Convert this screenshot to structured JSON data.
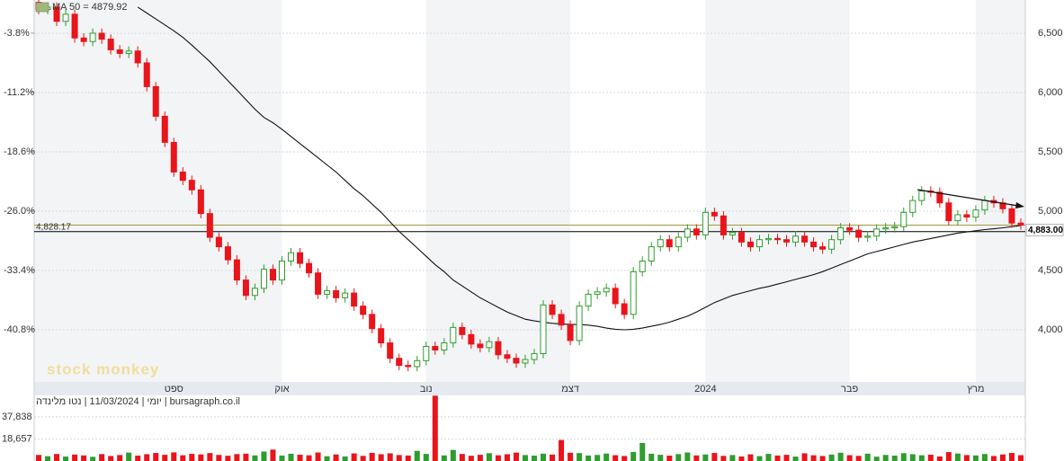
{
  "chart_data": {
    "type": "candlestick",
    "footer": "יומי | 11/03/2024 | נטו מלינדה | bursagraph.co.il",
    "watermark": "stock monkey",
    "up_color": "#2e9d2e",
    "down_color": "#e8151b",
    "grid": true,
    "categories": [
      null,
      null,
      null,
      null,
      null,
      null,
      null,
      null,
      null,
      null,
      null,
      null,
      null,
      null,
      null,
      "ספט",
      null,
      null,
      null,
      null,
      null,
      null,
      null,
      null,
      null,
      null,
      null,
      "אוק",
      null,
      null,
      null,
      null,
      null,
      null,
      null,
      null,
      null,
      null,
      null,
      null,
      null,
      null,
      null,
      "נוב",
      null,
      null,
      null,
      null,
      null,
      null,
      null,
      null,
      null,
      null,
      null,
      null,
      null,
      null,
      null,
      "דצמ",
      null,
      null,
      null,
      null,
      null,
      null,
      null,
      null,
      null,
      null,
      null,
      null,
      null,
      null,
      "2024",
      null,
      null,
      null,
      null,
      null,
      null,
      null,
      null,
      null,
      null,
      null,
      null,
      null,
      null,
      null,
      "פבר",
      null,
      null,
      null,
      null,
      null,
      null,
      null,
      null,
      null,
      null,
      null,
      null,
      null,
      "מרץ",
      null,
      null,
      null,
      null,
      null
    ],
    "open": [
      6760,
      6700,
      6720,
      6600,
      6660,
      6460,
      6430,
      6500,
      6450,
      6360,
      6330,
      6350,
      6250,
      6050,
      5800,
      5580,
      5330,
      5260,
      5180,
      4980,
      4780,
      4700,
      4590,
      4420,
      4290,
      4350,
      4510,
      4420,
      4580,
      4650,
      4560,
      4480,
      4300,
      4330,
      4270,
      4310,
      4200,
      4130,
      4010,
      3890,
      3760,
      3700,
      3690,
      3740,
      3860,
      3830,
      3890,
      4020,
      3960,
      3880,
      3850,
      3900,
      3790,
      3760,
      3720,
      3750,
      3800,
      4210,
      4130,
      4040,
      3910,
      4200,
      4300,
      4320,
      4350,
      4220,
      4130,
      4490,
      4580,
      4700,
      4760,
      4700,
      4780,
      4850,
      4800,
      4990,
      4960,
      4800,
      4820,
      4740,
      4700,
      4760,
      4770,
      4760,
      4740,
      4790,
      4740,
      4700,
      4680,
      4760,
      4860,
      4840,
      4780,
      4790,
      4850,
      4860,
      4870,
      4990,
      5090,
      5170,
      5160,
      5070,
      4920,
      4970,
      4950,
      5010,
      5090,
      5070,
      5020,
      4900
    ],
    "high": [
      6800,
      6760,
      6760,
      6700,
      6700,
      6500,
      6540,
      6540,
      6490,
      6400,
      6390,
      6390,
      6290,
      6090,
      5840,
      5620,
      5370,
      5300,
      5220,
      5020,
      4820,
      4740,
      4630,
      4460,
      4390,
      4550,
      4550,
      4620,
      4690,
      4690,
      4600,
      4520,
      4370,
      4370,
      4350,
      4350,
      4240,
      4170,
      4050,
      3930,
      3800,
      3740,
      3780,
      3900,
      3900,
      3930,
      4060,
      4060,
      4000,
      3920,
      3940,
      3940,
      3830,
      3800,
      3790,
      3840,
      4250,
      4250,
      4170,
      4080,
      4240,
      4340,
      4360,
      4390,
      4390,
      4260,
      4530,
      4620,
      4740,
      4800,
      4800,
      4820,
      4890,
      4890,
      5030,
      5030,
      5000,
      4860,
      4860,
      4780,
      4800,
      4810,
      4810,
      4800,
      4830,
      4830,
      4780,
      4740,
      4800,
      4900,
      4900,
      4880,
      4830,
      4890,
      4900,
      4910,
      5030,
      5130,
      5210,
      5210,
      5200,
      5110,
      5010,
      5010,
      5050,
      5130,
      5130,
      5110,
      5060,
      4940
    ],
    "low": [
      6660,
      6660,
      6560,
      6560,
      6420,
      6390,
      6390,
      6410,
      6320,
      6290,
      6290,
      6210,
      6010,
      5760,
      5540,
      5290,
      5220,
      5140,
      4940,
      4740,
      4660,
      4550,
      4380,
      4250,
      4250,
      4310,
      4380,
      4380,
      4540,
      4520,
      4440,
      4260,
      4260,
      4230,
      4230,
      4160,
      4090,
      3970,
      3850,
      3720,
      3660,
      3650,
      3650,
      3700,
      3790,
      3790,
      3850,
      3920,
      3840,
      3810,
      3810,
      3750,
      3720,
      3680,
      3680,
      3710,
      3760,
      4090,
      4000,
      3870,
      3870,
      4160,
      4260,
      4280,
      4180,
      4090,
      4090,
      4450,
      4540,
      4660,
      4660,
      4660,
      4740,
      4760,
      4760,
      4920,
      4760,
      4760,
      4700,
      4660,
      4660,
      4720,
      4720,
      4700,
      4700,
      4700,
      4660,
      4640,
      4640,
      4720,
      4800,
      4740,
      4740,
      4750,
      4810,
      4820,
      4830,
      4950,
      5050,
      5120,
      5030,
      4880,
      4880,
      4910,
      4910,
      4970,
      5030,
      4980,
      4860,
      4843
    ],
    "close": [
      6700,
      6720,
      6600,
      6660,
      6460,
      6430,
      6500,
      6450,
      6360,
      6330,
      6350,
      6250,
      6050,
      5800,
      5580,
      5330,
      5260,
      5180,
      4980,
      4780,
      4700,
      4590,
      4420,
      4290,
      4350,
      4510,
      4420,
      4580,
      4650,
      4560,
      4480,
      4300,
      4330,
      4270,
      4310,
      4200,
      4130,
      4010,
      3890,
      3760,
      3700,
      3690,
      3740,
      3860,
      3830,
      3890,
      4020,
      3960,
      3880,
      3850,
      3900,
      3790,
      3760,
      3720,
      3750,
      3800,
      4210,
      4130,
      4040,
      3910,
      4200,
      4300,
      4320,
      4350,
      4220,
      4130,
      4490,
      4580,
      4700,
      4760,
      4700,
      4780,
      4850,
      4800,
      4990,
      4960,
      4800,
      4820,
      4740,
      4700,
      4760,
      4770,
      4760,
      4740,
      4790,
      4740,
      4700,
      4680,
      4760,
      4860,
      4840,
      4780,
      4790,
      4850,
      4860,
      4870,
      4990,
      5090,
      5170,
      5160,
      5070,
      4920,
      4970,
      4950,
      5010,
      5090,
      5070,
      5020,
      4900,
      4883
    ],
    "ma": {
      "name": "MA 50 = 4879.92",
      "color": "#111111",
      "values": [
        null,
        null,
        null,
        null,
        null,
        null,
        null,
        null,
        null,
        null,
        null,
        6720,
        6670,
        6620,
        6570,
        6520,
        6465,
        6400,
        6330,
        6260,
        6180,
        6100,
        6020,
        5940,
        5860,
        5790,
        5745,
        5690,
        5630,
        5570,
        5510,
        5450,
        5390,
        5330,
        5260,
        5190,
        5130,
        5060,
        4990,
        4910,
        4830,
        4760,
        4690,
        4620,
        4550,
        4490,
        4420,
        4370,
        4320,
        4270,
        4230,
        4190,
        4150,
        4120,
        4090,
        4075,
        4065,
        4055,
        4050,
        4045,
        4045,
        4040,
        4030,
        4015,
        4005,
        4000,
        4005,
        4015,
        4030,
        4045,
        4065,
        4090,
        4115,
        4150,
        4190,
        4230,
        4260,
        4290,
        4310,
        4330,
        4350,
        4365,
        4385,
        4405,
        4425,
        4445,
        4465,
        4490,
        4520,
        4550,
        4580,
        4610,
        4640,
        4660,
        4680,
        4700,
        4720,
        4740,
        4755,
        4770,
        4785,
        4800,
        4815,
        4825,
        4835,
        4845,
        4852,
        4860,
        4870,
        4880
      ]
    },
    "volume": [
      5200,
      4100,
      6000,
      3800,
      5500,
      4800,
      3600,
      5900,
      4300,
      5100,
      7200,
      4600,
      5800,
      6900,
      5300,
      7400,
      4900,
      6100,
      5600,
      6800,
      5200,
      4500,
      5900,
      6300,
      4800,
      8100,
      9800,
      4700,
      6200,
      5400,
      4900,
      7300,
      4100,
      5600,
      3900,
      6500,
      4400,
      7000,
      5800,
      6600,
      5100,
      4700,
      8700,
      6100,
      56000,
      4800,
      9500,
      6000,
      4500,
      5300,
      6700,
      4900,
      5800,
      7200,
      5100,
      4600,
      6300,
      5500,
      18000,
      7100,
      6800,
      4700,
      5200,
      6400,
      5000,
      4300,
      7800,
      15500,
      6200,
      5300,
      4600,
      5900,
      7300,
      4800,
      5600,
      6900,
      4400,
      5100,
      3900,
      5700,
      4200,
      6100,
      4700,
      5300,
      3800,
      6600,
      4900,
      4300,
      5500,
      7100,
      5000,
      4400,
      6300,
      3700,
      5200,
      4600,
      6700,
      5800,
      4900,
      5400,
      3900,
      7600,
      6400,
      5100,
      4800,
      6000,
      4300,
      5600,
      6900,
      5000
    ],
    "reference_lines": [
      {
        "value": 4828.17,
        "label": "4,828.17",
        "color": "#000000",
        "side": "left"
      },
      {
        "value": 4883,
        "label": "4,883.00",
        "color": "#9c9c3c",
        "side": "right"
      }
    ],
    "ylim": [
      3561,
      6780
    ],
    "yticks": [
      {
        "value": 4000,
        "label": "4,000"
      },
      {
        "value": 4500,
        "label": "4,500"
      },
      {
        "value": 5000,
        "label": "5,000"
      },
      {
        "value": 5500,
        "label": "5,500"
      },
      {
        "value": 6000,
        "label": "6,000"
      },
      {
        "value": 6500,
        "label": "6,500"
      }
    ],
    "y2lim": [
      -47.3,
      0.34
    ],
    "y2ticks": [
      {
        "value": -40.8,
        "label": "-40.8%"
      },
      {
        "value": -33.4,
        "label": "-33.4%"
      },
      {
        "value": -26,
        "label": "-26.0%"
      },
      {
        "value": -18.6,
        "label": "-18.6%"
      },
      {
        "value": -11.2,
        "label": "-11.2%"
      },
      {
        "value": -3.8,
        "label": "-3.8%"
      }
    ],
    "vlim": [
      0,
      56250
    ],
    "vticks": [
      {
        "value": 18657,
        "label": "18,657"
      },
      {
        "value": 37838,
        "label": "37,838"
      }
    ]
  }
}
